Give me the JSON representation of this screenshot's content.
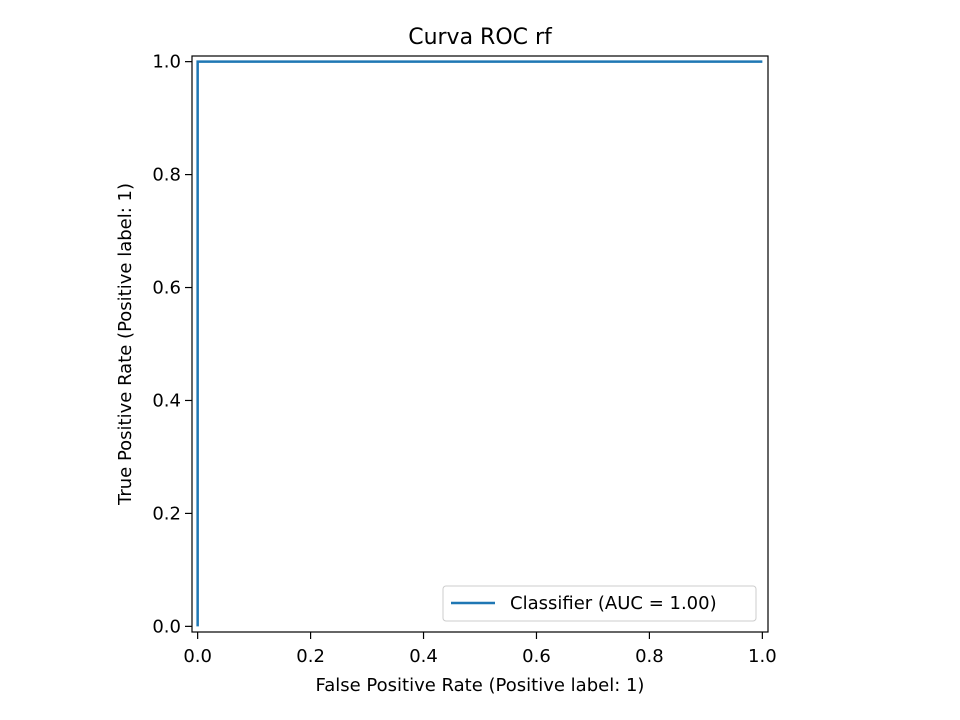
{
  "chart_data": {
    "type": "line",
    "title": "Curva ROC rf",
    "xlabel": "False Positive Rate (Positive label: 1)",
    "ylabel": "True Positive Rate (Positive label: 1)",
    "xlim": [
      -0.01,
      1.01
    ],
    "ylim": [
      -0.01,
      1.01
    ],
    "x_ticks": [
      0.0,
      0.2,
      0.4,
      0.6,
      0.8,
      1.0
    ],
    "y_ticks": [
      0.0,
      0.2,
      0.4,
      0.6,
      0.8,
      1.0
    ],
    "x_tick_labels": [
      "0.0",
      "0.2",
      "0.4",
      "0.6",
      "0.8",
      "1.0"
    ],
    "y_tick_labels": [
      "0.0",
      "0.2",
      "0.4",
      "0.6",
      "0.8",
      "1.0"
    ],
    "grid": false,
    "legend_position": "lower-right",
    "series": [
      {
        "name": "Classifier (AUC = 1.00)",
        "color": "#1f77b4",
        "x": [
          0.0,
          0.0,
          1.0
        ],
        "y": [
          0.0,
          1.0,
          1.0
        ]
      }
    ]
  }
}
